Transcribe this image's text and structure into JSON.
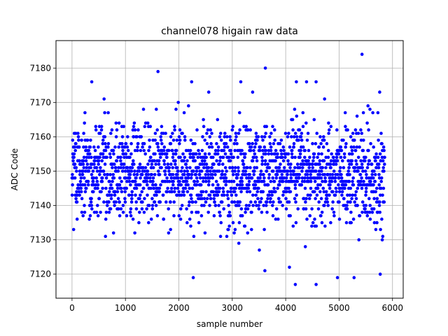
{
  "chart_data": {
    "type": "scatter",
    "title": "channel078 higain raw data",
    "xlabel": "sample number",
    "ylabel": "ADC Code",
    "xlim": [
      -300,
      6200
    ],
    "ylim": [
      7113,
      7188
    ],
    "xticks": [
      0,
      1000,
      2000,
      3000,
      4000,
      5000,
      6000
    ],
    "yticks": [
      7120,
      7130,
      7140,
      7150,
      7160,
      7170,
      7180
    ],
    "xtick_labels": [
      "0",
      "1000",
      "2000",
      "3000",
      "4000",
      "5000",
      "6000"
    ],
    "ytick_labels": [
      "7120",
      "7130",
      "7140",
      "7150",
      "7160",
      "7170",
      "7180"
    ],
    "grid": true,
    "marker_color": "#0000ff",
    "series_summary": {
      "sample_count": 5856,
      "mean": 7149,
      "std": 7,
      "x_range": [
        0,
        5855
      ]
    },
    "notable_points": [
      {
        "x": 5430,
        "y": 7184
      },
      {
        "x": 3620,
        "y": 7180
      },
      {
        "x": 1610,
        "y": 7179
      },
      {
        "x": 2270,
        "y": 7119
      },
      {
        "x": 4570,
        "y": 7117
      },
      {
        "x": 4180,
        "y": 7117
      },
      {
        "x": 4970,
        "y": 7119
      },
      {
        "x": 5280,
        "y": 7119
      },
      {
        "x": 5770,
        "y": 7120
      },
      {
        "x": 4070,
        "y": 7122
      },
      {
        "x": 3610,
        "y": 7121
      },
      {
        "x": 3160,
        "y": 7176
      },
      {
        "x": 4200,
        "y": 7176
      },
      {
        "x": 4390,
        "y": 7176
      },
      {
        "x": 4570,
        "y": 7176
      },
      {
        "x": 370,
        "y": 7176
      },
      {
        "x": 2240,
        "y": 7176
      },
      {
        "x": 2560,
        "y": 7173
      },
      {
        "x": 5760,
        "y": 7173
      }
    ]
  }
}
